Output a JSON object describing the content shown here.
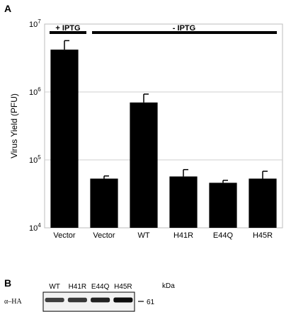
{
  "panel_a": {
    "letter": "A",
    "bracket_plus": "+ IPTG",
    "bracket_minus": "- IPTG",
    "chart_data": {
      "type": "bar",
      "yscale": "log",
      "ylabel": "Virus Yield (PFU)",
      "xlabel": "",
      "ylim": [
        10000,
        10000000
      ],
      "yticks": [
        {
          "value": 10000,
          "base": "10",
          "exp": "4"
        },
        {
          "value": 100000,
          "base": "10",
          "exp": "5"
        },
        {
          "value": 1000000,
          "base": "10",
          "exp": "6"
        },
        {
          "value": 10000000,
          "base": "10",
          "exp": "7"
        }
      ],
      "grid": true,
      "categories": [
        "Vector",
        "Vector",
        "WT",
        "H41R",
        "E44Q",
        "H45R"
      ],
      "values": [
        4200000,
        53000,
        700000,
        57000,
        46000,
        53000
      ],
      "errors": [
        5700000,
        58000,
        930000,
        72000,
        50000,
        68000
      ],
      "bar_color": "#000000"
    }
  },
  "panel_b": {
    "letter": "B",
    "row_label": "α–HA",
    "lanes": [
      "WT",
      "H41R",
      "E44Q",
      "H45R"
    ],
    "unit_label": "kDa",
    "marker": "61",
    "band_intensity": [
      0.65,
      0.7,
      0.85,
      1.0
    ]
  }
}
